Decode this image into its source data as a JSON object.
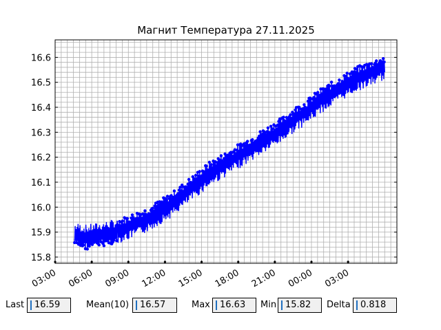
{
  "chart_data": {
    "type": "line",
    "title": "Магнит Температура 27.11.2025",
    "xlabel": "",
    "ylabel": "",
    "x_tick_labels": [
      "03:00",
      "06:00",
      "09:00",
      "12:00",
      "15:00",
      "18:00",
      "21:00",
      "00:00",
      "03:00"
    ],
    "x_range_hours": [
      3.0,
      31.0
    ],
    "y_ticks": [
      15.8,
      15.9,
      16.0,
      16.1,
      16.2,
      16.3,
      16.4,
      16.5,
      16.6
    ],
    "ylim": [
      15.775,
      16.67
    ],
    "grid": true,
    "series": [
      {
        "color": "#0000ff",
        "marker": "circle",
        "x_hours": [
          4.6,
          5.6,
          6.6,
          7.6,
          8.6,
          9.6,
          10.6,
          11.6,
          12.6,
          13.6,
          14.6,
          15.6,
          16.6,
          17.6,
          18.6,
          19.6,
          20.6,
          21.6,
          22.6,
          23.6,
          24.6,
          25.6,
          26.6,
          27.6,
          28.6,
          29.6,
          30.0
        ],
        "values": [
          15.89,
          15.88,
          15.89,
          15.9,
          15.91,
          15.93,
          15.95,
          15.98,
          16.01,
          16.05,
          16.09,
          16.13,
          16.16,
          16.19,
          16.22,
          16.25,
          16.28,
          16.31,
          16.35,
          16.38,
          16.42,
          16.45,
          16.48,
          16.51,
          16.53,
          16.55,
          16.56
        ],
        "band_halfwidth": 0.05
      }
    ]
  },
  "stats": {
    "last_label": "Last",
    "last_value": "16.59",
    "mean_label": "Mean(10)",
    "mean_value": "16.57",
    "max_label": "Max",
    "max_value": "16.63",
    "min_label": "Min",
    "min_value": "15.82",
    "delta_label": "Delta",
    "delta_value": "0.818"
  }
}
